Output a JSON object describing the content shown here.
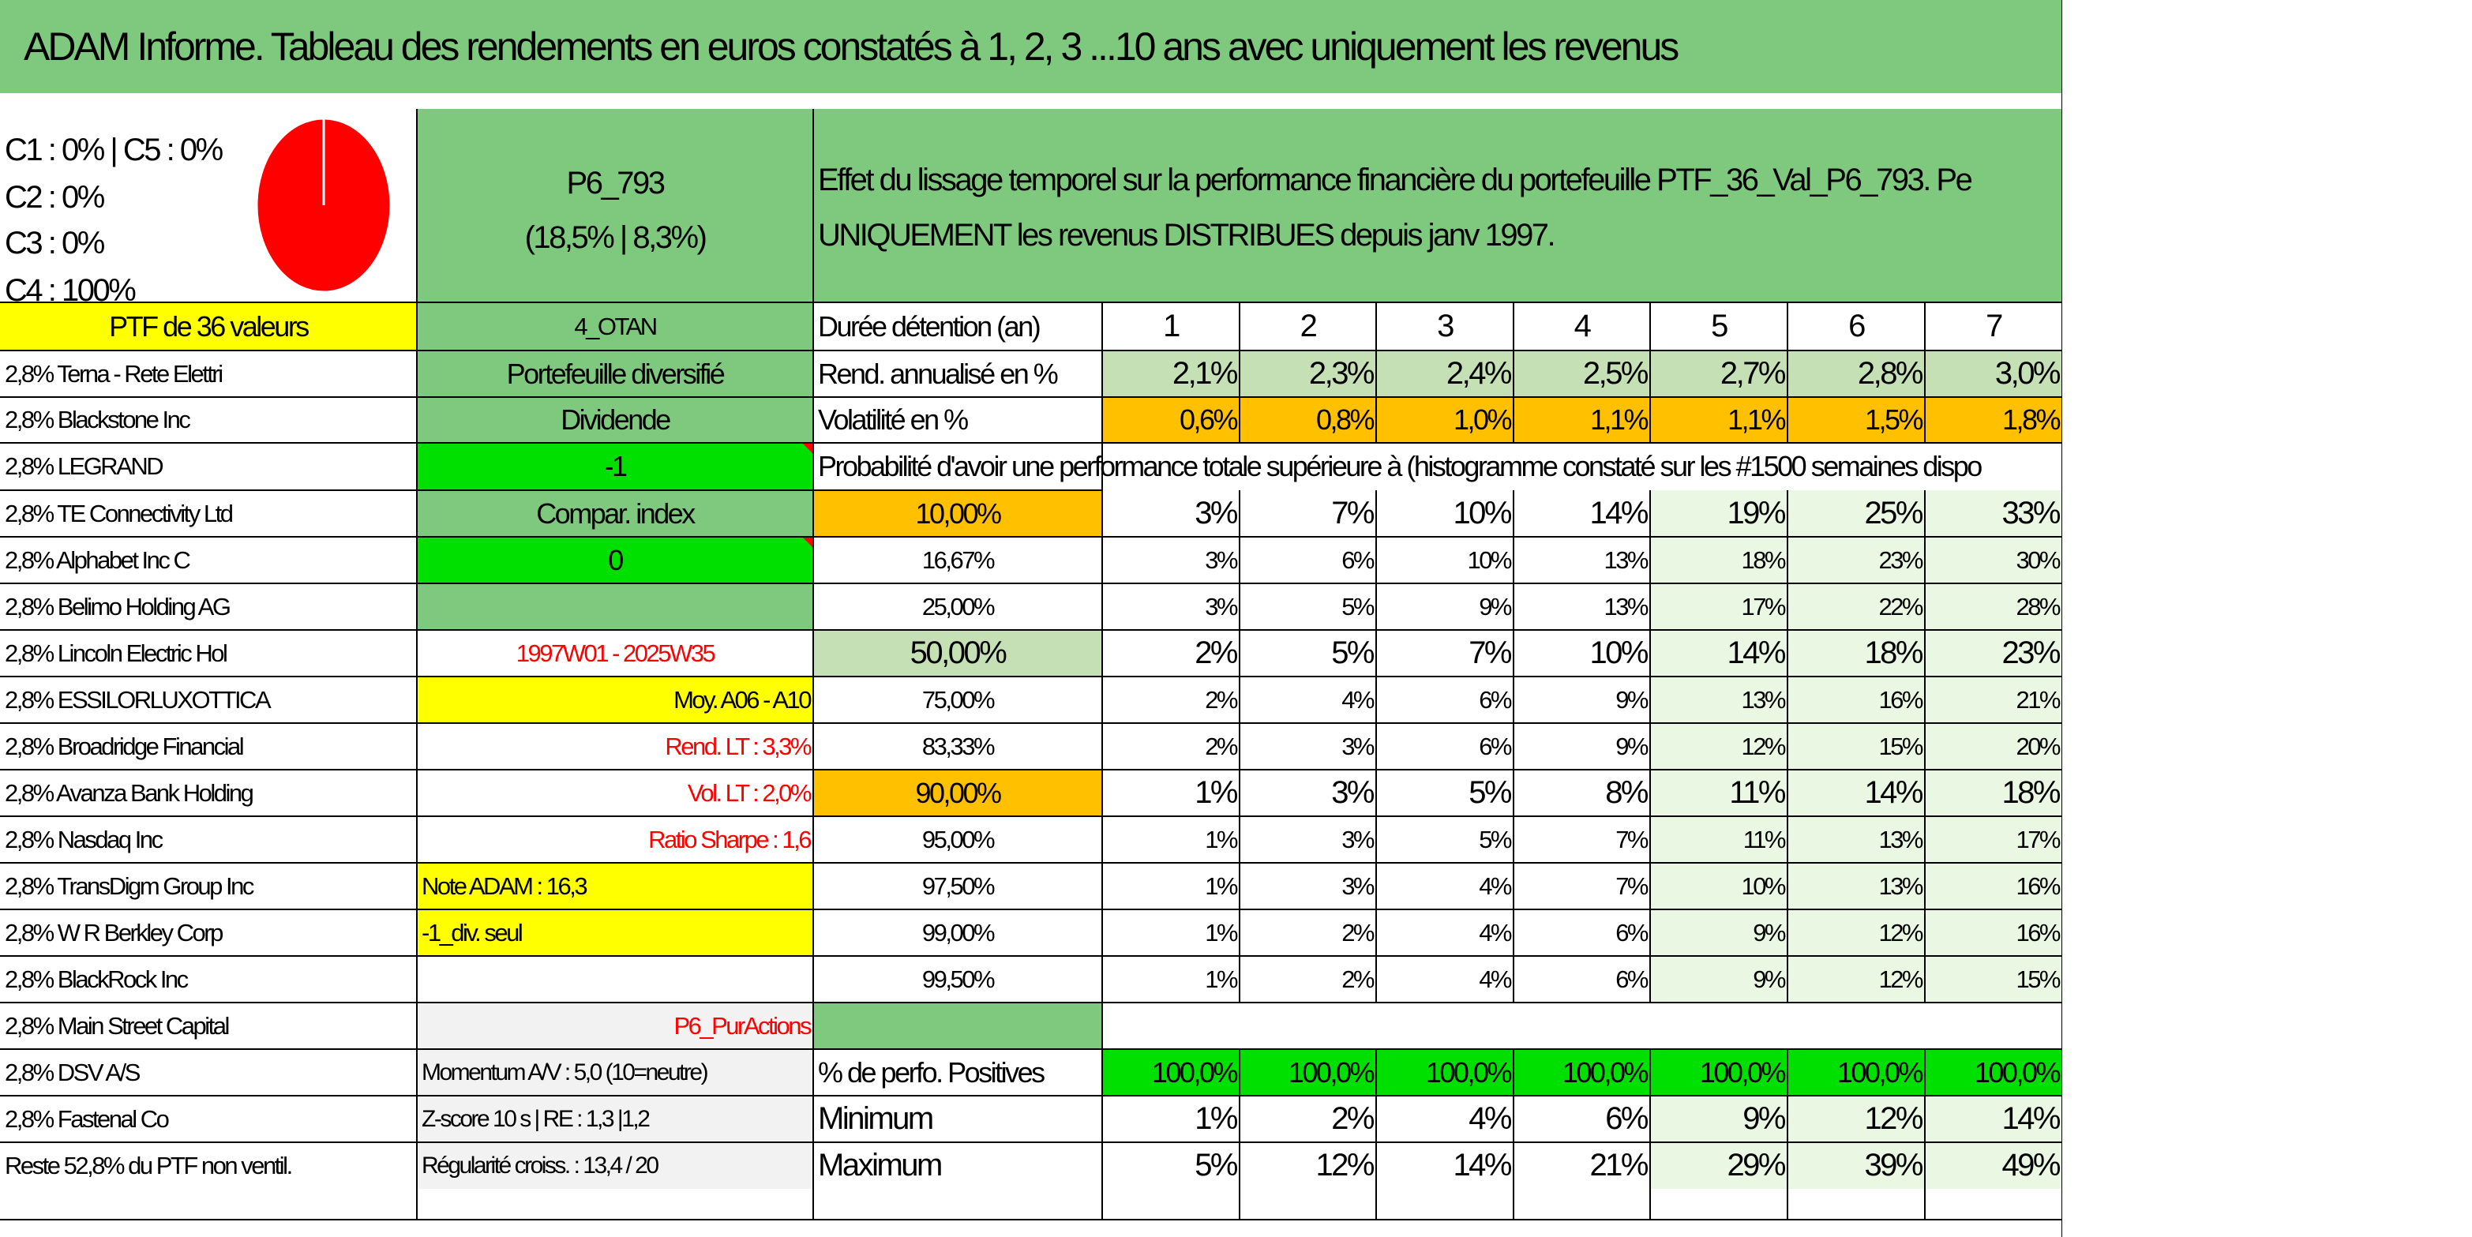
{
  "title": "ADAM Informe. Tableau des rendements en euros constatés à 1, 2, 3 ...10 ans avec uniquement les revenus",
  "allocation": {
    "lines": [
      "C1 : 0% | C5 : 0%",
      "C2 : 0%",
      "C3 : 0%",
      "C4 : 100%"
    ],
    "pie_share_c4": 1.0,
    "pie_color": "#ff0000"
  },
  "portfolio_code": "P6_793",
  "portfolio_stats": "(18,5% | 8,3%)",
  "description_line1": "Effet du lissage temporel sur la performance financière du portefeuille PTF_36_Val_P6_793. Pe",
  "description_line2": "UNIQUEMENT les revenus DISTRIBUES depuis janv 1997.",
  "ptf_label": "PTF de 36 valeurs",
  "holdings": [
    "2,8% Terna - Rete Elettri",
    "2,8% Blackstone Inc",
    "2,8% LEGRAND",
    "2,8% TE Connectivity Ltd",
    "2,8% Alphabet Inc C",
    "2,8% Belimo Holding AG",
    "2,8% Lincoln Electric Hol",
    "2,8% ESSILORLUXOTTICA",
    "2,8% Broadridge Financial",
    "2,8% Avanza Bank Holding",
    "2,8% Nasdaq Inc",
    "2,8% TransDigm Group Inc",
    "2,8% W R Berkley Corp",
    "2,8% BlackRock Inc",
    "2,8% Main Street Capital",
    "2,8% DSV A/S",
    "2,8% Fastenal Co",
    "Reste 52,8% du PTF non ventil."
  ],
  "info": {
    "code": "4_OTAN",
    "type": "Portefeuille diversifié",
    "dividend_label": "Dividende",
    "dividend_value": "-1",
    "compar_label": "Compar. index",
    "compar_value": "0",
    "period": "1997W01 - 2025W35",
    "moy": "Moy. A06 - A10",
    "rend_lt": "Rend. LT : 3,3%",
    "vol_lt": "Vol. LT : 2,0%",
    "sharpe": "Ratio Sharpe : 1,6",
    "note": "Note ADAM : 16,3",
    "div_seul": "-1_div. seul",
    "pur_actions": "P6_PurActions",
    "momentum": "Momentum A/V : 5,0 (10=neutre)",
    "zscore": "Z-score 10 s | RE : 1,3 |1,2",
    "regularite": "Régularité croiss. : 13,4 / 20"
  },
  "table": {
    "duration_label": "Durée détention (an)",
    "years": [
      "1",
      "2",
      "3",
      "4",
      "5",
      "6",
      "7"
    ],
    "rend_label": "Rend. annualisé en %",
    "rend": [
      "2,1%",
      "2,3%",
      "2,4%",
      "2,5%",
      "2,7%",
      "2,8%",
      "3,0%"
    ],
    "vol_label": "Volatilité en %",
    "vol": [
      "0,6%",
      "0,8%",
      "1,0%",
      "1,1%",
      "1,1%",
      "1,5%",
      "1,8%"
    ],
    "prob_title": "Probabilité d'avoir une performance totale supérieure à (histogramme constaté sur les #1500 semaines dispo",
    "prob_rows": [
      {
        "pct": "10,00%",
        "values": [
          "3%",
          "7%",
          "10%",
          "14%",
          "19%",
          "25%",
          "33%"
        ]
      },
      {
        "pct": "16,67%",
        "values": [
          "3%",
          "6%",
          "10%",
          "13%",
          "18%",
          "23%",
          "30%"
        ]
      },
      {
        "pct": "25,00%",
        "values": [
          "3%",
          "5%",
          "9%",
          "13%",
          "17%",
          "22%",
          "28%"
        ]
      },
      {
        "pct": "50,00%",
        "values": [
          "2%",
          "5%",
          "7%",
          "10%",
          "14%",
          "18%",
          "23%"
        ]
      },
      {
        "pct": "75,00%",
        "values": [
          "2%",
          "4%",
          "6%",
          "9%",
          "13%",
          "16%",
          "21%"
        ]
      },
      {
        "pct": "83,33%",
        "values": [
          "2%",
          "3%",
          "6%",
          "9%",
          "12%",
          "15%",
          "20%"
        ]
      },
      {
        "pct": "90,00%",
        "values": [
          "1%",
          "3%",
          "5%",
          "8%",
          "11%",
          "14%",
          "18%"
        ]
      },
      {
        "pct": "95,00%",
        "values": [
          "1%",
          "3%",
          "5%",
          "7%",
          "11%",
          "13%",
          "17%"
        ]
      },
      {
        "pct": "97,50%",
        "values": [
          "1%",
          "3%",
          "4%",
          "7%",
          "10%",
          "13%",
          "16%"
        ]
      },
      {
        "pct": "99,00%",
        "values": [
          "1%",
          "2%",
          "4%",
          "6%",
          "9%",
          "12%",
          "16%"
        ]
      },
      {
        "pct": "99,50%",
        "values": [
          "1%",
          "2%",
          "4%",
          "6%",
          "9%",
          "12%",
          "15%"
        ]
      }
    ],
    "pos_label": "% de perfo. Positives",
    "pos": [
      "100,0%",
      "100,0%",
      "100,0%",
      "100,0%",
      "100,0%",
      "100,0%",
      "100,0%"
    ],
    "min_label": "Minimum",
    "min": [
      "1%",
      "2%",
      "4%",
      "6%",
      "9%",
      "12%",
      "14%"
    ],
    "max_label": "Maximum",
    "max": [
      "5%",
      "12%",
      "14%",
      "21%",
      "29%",
      "39%",
      "49%"
    ]
  },
  "colors": {
    "header_green": "#7fc97f",
    "light_green": "#c5e0b4",
    "pale_green": "#eaf7e3",
    "yellow": "#ffff00",
    "orange": "#ffc000",
    "bright_green": "#00e000",
    "red_text": "#ff0000"
  }
}
